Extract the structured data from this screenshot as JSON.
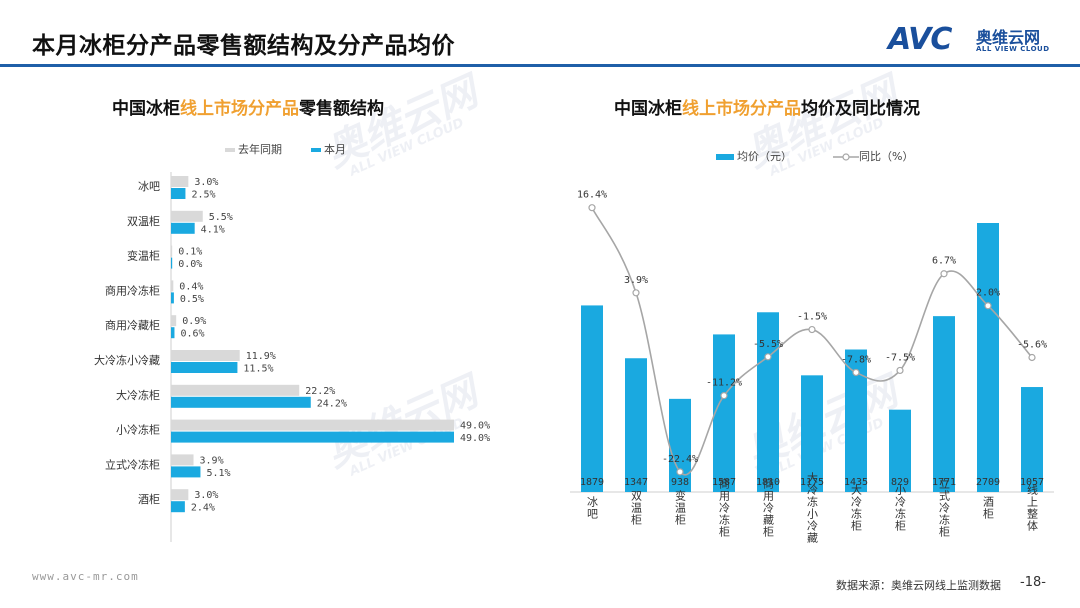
{
  "page": {
    "title": "本月冰柜分产品零售额结构及分产品均价",
    "logo": {
      "mark": "AVC",
      "cn": "奥维云网",
      "en": "ALL VIEW CLOUD"
    },
    "watermark_cn": "奥维云网",
    "watermark_en": "ALL VIEW CLOUD",
    "footer_url": "www.avc-mr.com",
    "footer_source": "数据来源：奥维云网线上监测数据",
    "page_number": "-18-"
  },
  "colors": {
    "current": "#1aa9e0",
    "last_year": "#d9d9d9",
    "line": "#a6a6a6",
    "accent": "#f0a030",
    "rule": "#1f5fa8"
  },
  "left_chart": {
    "title_pre": "中国冰柜",
    "title_hl": "线上市场分产品",
    "title_post": "零售额结构",
    "legend_last": "去年同期",
    "legend_current": "本月"
  },
  "right_chart": {
    "title_pre": "中国冰柜",
    "title_hl": "线上市场分产品",
    "title_post": "均价及同比情况",
    "legend_bar": "均价（元）",
    "legend_line": "同比（%）"
  },
  "chart_data": [
    {
      "type": "bar",
      "orientation": "horizontal",
      "title": "中国冰柜线上市场分产品零售额结构",
      "categories": [
        "冰吧",
        "双温柜",
        "变温柜",
        "商用冷冻柜",
        "商用冷藏柜",
        "大冷冻小冷藏",
        "大冷冻柜",
        "小冷冻柜",
        "立式冷冻柜",
        "酒柜"
      ],
      "series": [
        {
          "name": "去年同期",
          "values": [
            3.0,
            5.5,
            0.1,
            0.4,
            0.9,
            11.9,
            22.2,
            49.0,
            3.9,
            3.0
          ],
          "labels": [
            "3.0%",
            "5.5%",
            "0.1%",
            "0.4%",
            "0.9%",
            "11.9%",
            "22.2%",
            "49.0%",
            "3.9%",
            "3.0%"
          ]
        },
        {
          "name": "本月",
          "values": [
            2.5,
            4.1,
            0.0,
            0.5,
            0.6,
            11.5,
            24.2,
            49.0,
            5.1,
            2.4
          ],
          "labels": [
            "2.5%",
            "4.1%",
            "0.0%",
            "0.5%",
            "0.6%",
            "11.5%",
            "24.2%",
            "49.0%",
            "5.1%",
            "2.4%"
          ]
        }
      ],
      "xlim": [
        0,
        50
      ]
    },
    {
      "type": "bar+line",
      "title": "中国冰柜线上市场分产品均价及同比情况",
      "categories": [
        "冰吧",
        "双温柜",
        "变温柜",
        "商用冷冻柜",
        "商用冷藏柜",
        "大冷冻小冷藏",
        "大冷冻柜",
        "小冷冻柜",
        "立式冷冻柜",
        "酒柜",
        "线上整体"
      ],
      "bar_series": {
        "name": "均价（元）",
        "values": [
          1879,
          1347,
          938,
          1587,
          1810,
          1175,
          1435,
          829,
          1771,
          2709,
          1057
        ]
      },
      "line_series": {
        "name": "同比（%）",
        "values": [
          16.4,
          3.9,
          -22.4,
          -11.2,
          -5.5,
          -1.5,
          -7.8,
          -7.5,
          6.7,
          2.0,
          -5.6
        ],
        "labels": [
          "16.4%",
          "3.9%",
          "-22.4%",
          "-11.2%",
          "-5.5%",
          "-1.5%",
          "-7.8%",
          "-7.5%",
          "6.7%",
          "2.0%",
          "-5.6%"
        ]
      },
      "bar_ylim": [
        0,
        2900
      ],
      "line_ylim": [
        -28,
        19
      ]
    }
  ]
}
